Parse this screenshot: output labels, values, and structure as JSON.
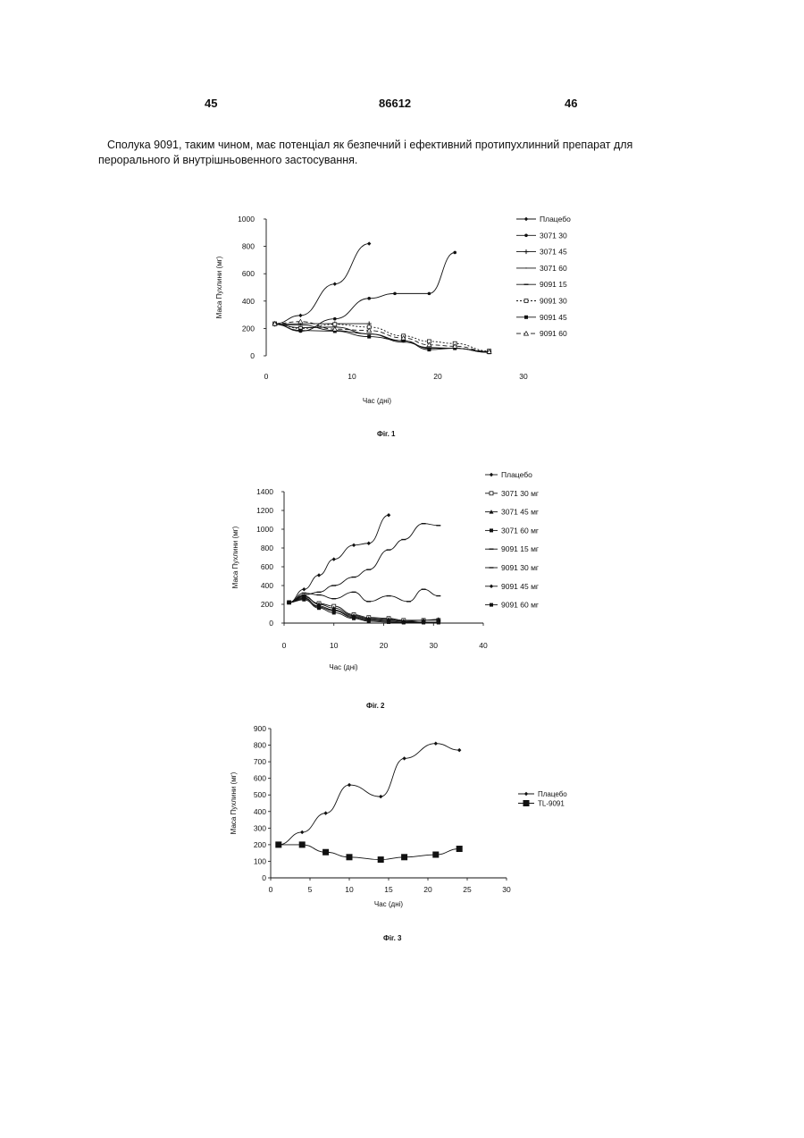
{
  "page": {
    "left_number": "45",
    "center_number": "86612",
    "right_number": "46",
    "paragraph": "Сполука 9091, таким чином, має потенціал як безпечний і ефективний протипухлинний препарат для перорального й внутрішньовенного застосування."
  },
  "figures": [
    {
      "caption": "Фіг. 1"
    },
    {
      "caption": "Фіг. 2"
    },
    {
      "caption": "Фіг. 3"
    }
  ],
  "chart_data": [
    {
      "type": "line",
      "title": "",
      "xlabel": "Час (дні)",
      "ylabel": "Маса Пухлини (мг)",
      "xlim": [
        0,
        30
      ],
      "ylim": [
        0,
        1000
      ],
      "xticks": [
        0,
        10,
        20,
        30
      ],
      "yticks": [
        0,
        200,
        400,
        600,
        800,
        1000
      ],
      "legend_position": "right",
      "series": [
        {
          "name": "Плацебо",
          "marker": "diamond",
          "dash": "",
          "x": [
            1,
            4,
            8,
            12
          ],
          "y": [
            235,
            295,
            525,
            820
          ]
        },
        {
          "name": "3071 30",
          "marker": "dot",
          "dash": "",
          "x": [
            1,
            4,
            8,
            12,
            15,
            19,
            22
          ],
          "y": [
            230,
            180,
            270,
            420,
            455,
            455,
            755
          ]
        },
        {
          "name": "3071 45",
          "marker": "plus",
          "dash": "",
          "x": [
            1,
            4,
            8,
            12
          ],
          "y": [
            230,
            235,
            235,
            235
          ]
        },
        {
          "name": "3071 60",
          "marker": "none",
          "dash": "",
          "x": [
            1,
            4,
            8,
            12,
            16,
            19,
            22,
            26
          ],
          "y": [
            230,
            205,
            210,
            160,
            100,
            60,
            55,
            25
          ]
        },
        {
          "name": "9091 15",
          "marker": "dash",
          "dash": "",
          "x": [
            1,
            4,
            8,
            12,
            16,
            19,
            22,
            26
          ],
          "y": [
            230,
            225,
            185,
            160,
            110,
            55,
            55,
            30
          ]
        },
        {
          "name": "9091 30",
          "marker": "square-open",
          "dash": "2,2",
          "x": [
            1,
            4,
            8,
            12,
            16,
            19,
            22,
            26
          ],
          "y": [
            235,
            200,
            230,
            210,
            145,
            105,
            90,
            35
          ]
        },
        {
          "name": "9091 45",
          "marker": "square",
          "dash": "",
          "x": [
            1,
            4,
            8,
            12,
            16,
            19,
            22,
            26
          ],
          "y": [
            230,
            185,
            180,
            140,
            110,
            45,
            55,
            25
          ]
        },
        {
          "name": "9091 60",
          "marker": "triangle-open",
          "dash": "5,3",
          "x": [
            1,
            4,
            8,
            12,
            16,
            19,
            22,
            26
          ],
          "y": [
            235,
            250,
            195,
            185,
            130,
            80,
            70,
            30
          ]
        }
      ]
    },
    {
      "type": "line",
      "title": "",
      "xlabel": "Час (дні)",
      "ylabel": "Маса Пухлини (мг)",
      "xlim": [
        0,
        40
      ],
      "ylim": [
        0,
        1400
      ],
      "xticks": [
        0,
        10,
        20,
        30,
        40
      ],
      "yticks": [
        0,
        200,
        400,
        600,
        800,
        1000,
        1200,
        1400
      ],
      "legend_position": "right",
      "series": [
        {
          "name": "Плацебо",
          "marker": "diamond",
          "dash": "",
          "x": [
            1,
            4,
            7,
            10,
            14,
            17,
            21
          ],
          "y": [
            220,
            360,
            510,
            680,
            830,
            850,
            1150
          ]
        },
        {
          "name": "3071 30 мг",
          "marker": "square-open",
          "dash": "",
          "x": [
            1,
            4,
            7,
            10,
            14,
            17,
            21,
            24,
            28,
            31
          ],
          "y": [
            220,
            280,
            210,
            180,
            90,
            60,
            50,
            30,
            30,
            30
          ]
        },
        {
          "name": "3071 45 мг",
          "marker": "triangle",
          "dash": "",
          "x": [
            1,
            4,
            7,
            10,
            14,
            17,
            21,
            24,
            28,
            31
          ],
          "y": [
            220,
            290,
            200,
            160,
            80,
            50,
            40,
            20,
            30,
            40
          ]
        },
        {
          "name": "3071 60 мг",
          "marker": "square",
          "dash": "",
          "x": [
            1,
            4,
            7,
            10,
            14,
            17,
            21,
            24,
            28,
            31
          ],
          "y": [
            220,
            270,
            170,
            130,
            60,
            30,
            20,
            10,
            10,
            10
          ]
        },
        {
          "name": "9091 15 мг",
          "marker": "dash",
          "dash": "",
          "x": [
            1,
            4,
            7,
            10,
            14,
            17,
            21,
            25,
            28,
            31
          ],
          "y": [
            220,
            320,
            300,
            260,
            330,
            230,
            290,
            230,
            360,
            290
          ]
        },
        {
          "name": "9091 30 мг",
          "marker": "dash",
          "dash": "",
          "x": [
            1,
            4,
            7,
            10,
            14,
            17,
            21,
            24,
            28,
            31
          ],
          "y": [
            220,
            300,
            330,
            400,
            490,
            570,
            780,
            890,
            1060,
            1040
          ]
        },
        {
          "name": "9091 45 мг",
          "marker": "diamond",
          "dash": "",
          "x": [
            1,
            4,
            7,
            10,
            14,
            17,
            21,
            24,
            28,
            31
          ],
          "y": [
            220,
            260,
            180,
            140,
            70,
            40,
            30,
            20,
            10,
            10
          ]
        },
        {
          "name": "9091 60 мг",
          "marker": "square",
          "dash": "",
          "x": [
            1,
            4,
            7,
            10,
            14,
            17,
            21,
            24,
            28,
            31
          ],
          "y": [
            220,
            250,
            160,
            110,
            50,
            20,
            10,
            5,
            5,
            5
          ]
        }
      ]
    },
    {
      "type": "line",
      "title": "",
      "xlabel": "Час (дні)",
      "ylabel": "Маса Пухлини (мг)",
      "xlim": [
        0,
        30
      ],
      "ylim": [
        0,
        900
      ],
      "xticks": [
        0,
        5,
        10,
        15,
        20,
        25,
        30
      ],
      "yticks": [
        0,
        100,
        200,
        300,
        400,
        500,
        600,
        700,
        800,
        900
      ],
      "legend_position": "right",
      "series": [
        {
          "name": "Плацебо",
          "marker": "diamond",
          "dash": "",
          "x": [
            1,
            4,
            7,
            10,
            14,
            17,
            21,
            24
          ],
          "y": [
            200,
            275,
            390,
            560,
            490,
            720,
            810,
            770
          ]
        },
        {
          "name": "TL-9091",
          "marker": "square-big",
          "dash": "",
          "x": [
            1,
            4,
            7,
            10,
            14,
            17,
            21,
            24
          ],
          "y": [
            200,
            200,
            155,
            125,
            110,
            125,
            140,
            175
          ]
        }
      ]
    }
  ]
}
